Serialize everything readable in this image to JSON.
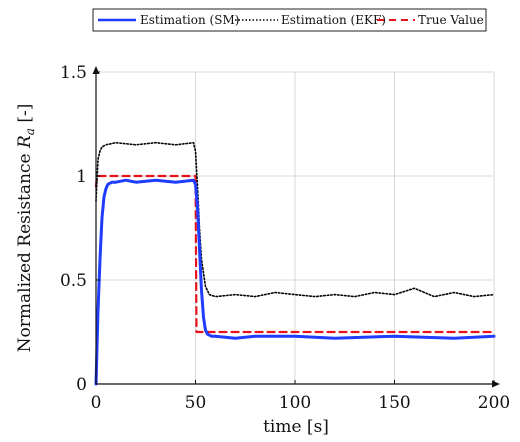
{
  "chart_data": {
    "type": "line",
    "xlabel": "time [s]",
    "ylabel": "Normalized Resistance",
    "ylabel_symbol": "R",
    "ylabel_subscript": "a",
    "ylabel_unit": "[-]",
    "xlim": [
      0,
      200
    ],
    "ylim": [
      0,
      1.5
    ],
    "x_ticks": [
      0,
      50,
      100,
      150,
      200
    ],
    "x_tick_labels": [
      "0",
      "50",
      "100",
      "150",
      "200"
    ],
    "y_ticks": [
      0,
      0.5,
      1,
      1.5
    ],
    "y_tick_labels": [
      "0",
      "0.5",
      "1",
      "1.5"
    ],
    "grid": true,
    "legend_position": "top (above plot)",
    "series": [
      {
        "name": "Estimation (SM)",
        "color": "#1f3cff",
        "style": "solid",
        "x": [
          0,
          1,
          2,
          3,
          4,
          5,
          6,
          8,
          10,
          15,
          20,
          30,
          40,
          49,
          50,
          51,
          52,
          53,
          54,
          55,
          56,
          58,
          60,
          70,
          80,
          100,
          120,
          150,
          180,
          200
        ],
        "y": [
          0,
          0.35,
          0.6,
          0.8,
          0.9,
          0.94,
          0.96,
          0.97,
          0.97,
          0.98,
          0.97,
          0.98,
          0.97,
          0.98,
          0.96,
          0.85,
          0.65,
          0.45,
          0.32,
          0.26,
          0.24,
          0.23,
          0.23,
          0.22,
          0.23,
          0.23,
          0.22,
          0.23,
          0.22,
          0.23
        ]
      },
      {
        "name": "Estimation (EKF)",
        "color": "#000000",
        "style": "dotted",
        "x": [
          0,
          1,
          2,
          3,
          5,
          10,
          20,
          30,
          40,
          49,
          50,
          51,
          52,
          53,
          55,
          57,
          60,
          70,
          80,
          90,
          100,
          110,
          120,
          130,
          140,
          150,
          160,
          170,
          180,
          190,
          200
        ],
        "y": [
          0.88,
          1.08,
          1.12,
          1.14,
          1.15,
          1.16,
          1.15,
          1.16,
          1.15,
          1.16,
          1.12,
          0.95,
          0.75,
          0.6,
          0.47,
          0.43,
          0.42,
          0.43,
          0.42,
          0.44,
          0.43,
          0.42,
          0.43,
          0.42,
          0.44,
          0.43,
          0.46,
          0.42,
          0.44,
          0.42,
          0.43
        ]
      },
      {
        "name": "True Value",
        "color": "#e8141d",
        "style": "dashed",
        "x": [
          0,
          0.5,
          50,
          50.5,
          200
        ],
        "y": [
          0.95,
          1.0,
          1.0,
          0.25,
          0.25
        ]
      }
    ]
  }
}
